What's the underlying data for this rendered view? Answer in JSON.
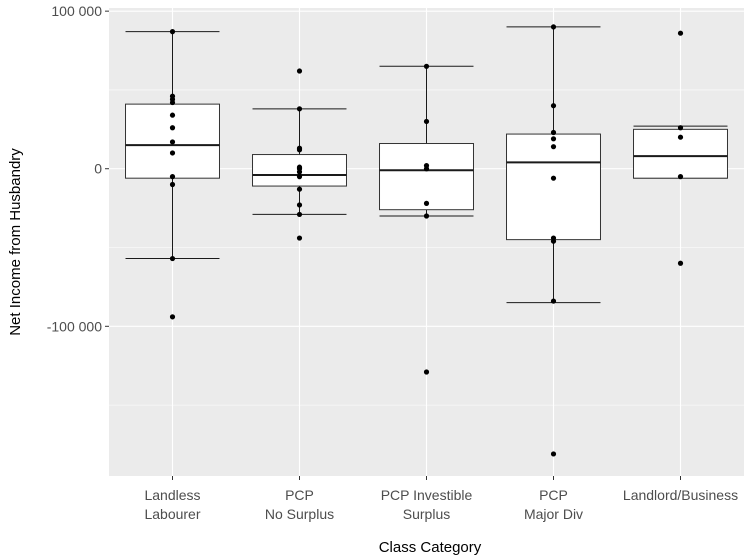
{
  "chart_data": {
    "type": "box",
    "xlabel": "Class Category",
    "ylabel": "Net Income from Husbandry",
    "ylim": [
      -195000,
      102000
    ],
    "y_ticks": [
      {
        "value": 100000,
        "label": "100 000"
      },
      {
        "value": 0,
        "label": "0"
      },
      {
        "value": -100000,
        "label": "-100 000"
      }
    ],
    "grid": true,
    "background": "#ebebeb",
    "categories": [
      {
        "label_lines": [
          "Landless",
          "Labourer"
        ],
        "box": {
          "whisker_low": -57000,
          "q1": -6000,
          "median": 15000,
          "q3": 41000,
          "whisker_high": 87000
        },
        "points": [
          -94000,
          -57000,
          -10000,
          -5000,
          10000,
          17000,
          26000,
          34000,
          42000,
          44000,
          46000,
          87000
        ]
      },
      {
        "label_lines": [
          "PCP",
          "No Surplus"
        ],
        "box": {
          "whisker_low": -29000,
          "q1": -11000,
          "median": -4000,
          "q3": 9000,
          "whisker_high": 38000
        },
        "points": [
          -44000,
          -29000,
          -23000,
          -13000,
          -5000,
          -2000,
          0,
          1000,
          12000,
          13000,
          38000,
          62000
        ]
      },
      {
        "label_lines": [
          "PCP Investible",
          "Surplus"
        ],
        "box": {
          "whisker_low": -30000,
          "q1": -26000,
          "median": -1000,
          "q3": 16000,
          "whisker_high": 65000
        },
        "points": [
          -129000,
          -30000,
          -22000,
          0,
          2000,
          30000,
          65000
        ]
      },
      {
        "label_lines": [
          "PCP",
          "Major Div"
        ],
        "box": {
          "whisker_low": -85000,
          "q1": -45000,
          "median": 4000,
          "q3": 22000,
          "whisker_high": 90000
        },
        "points": [
          -181000,
          -84000,
          -46000,
          -44000,
          -6000,
          14000,
          19000,
          23000,
          40000,
          90000
        ]
      },
      {
        "label_lines": [
          "Landlord/Business"
        ],
        "box": {
          "whisker_low": -6000,
          "q1": -6000,
          "median": 8000,
          "q3": 25000,
          "whisker_high": 27000
        },
        "points": [
          -60000,
          -5000,
          20000,
          26000,
          86000
        ]
      }
    ]
  }
}
